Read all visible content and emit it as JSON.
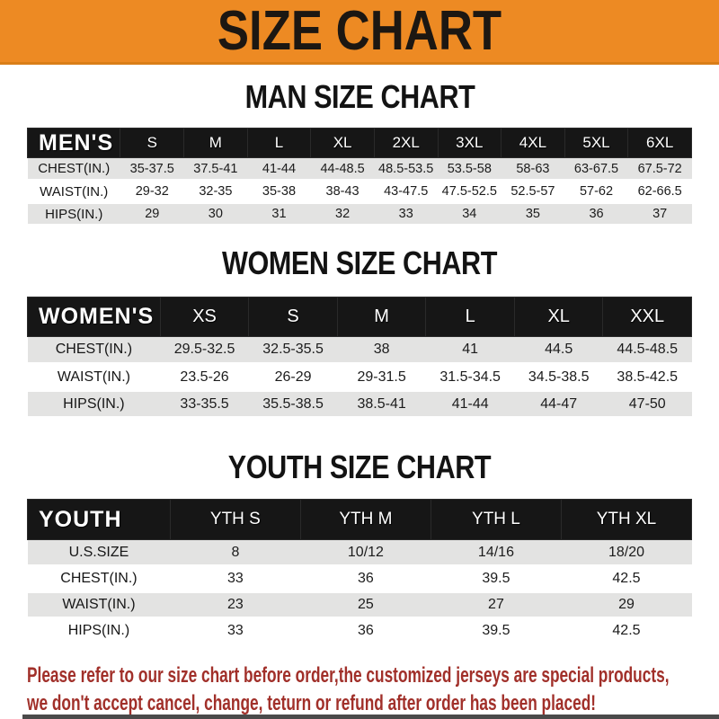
{
  "banner": {
    "title": "SIZE CHART"
  },
  "sections": [
    {
      "heading": "MAN SIZE CHART",
      "table": {
        "header_label": "MEN'S",
        "columns": [
          "S",
          "M",
          "L",
          "XL",
          "2XL",
          "3XL",
          "4XL",
          "5XL",
          "6XL"
        ],
        "rows": [
          {
            "label": "CHEST(IN.)",
            "values": [
              "35-37.5",
              "37.5-41",
              "41-44",
              "44-48.5",
              "48.5-53.5",
              "53.5-58",
              "58-63",
              "63-67.5",
              "67.5-72"
            ]
          },
          {
            "label": "WAIST(IN.)",
            "values": [
              "29-32",
              "32-35",
              "35-38",
              "38-43",
              "43-47.5",
              "47.5-52.5",
              "52.5-57",
              "57-62",
              "62-66.5"
            ]
          },
          {
            "label": "HIPS(IN.)",
            "values": [
              "29",
              "30",
              "31",
              "32",
              "33",
              "34",
              "35",
              "36",
              "37"
            ]
          }
        ]
      }
    },
    {
      "heading": "WOMEN SIZE CHART",
      "table": {
        "header_label": "WOMEN'S",
        "columns": [
          "XS",
          "S",
          "M",
          "L",
          "XL",
          "XXL"
        ],
        "rows": [
          {
            "label": "CHEST(IN.)",
            "values": [
              "29.5-32.5",
              "32.5-35.5",
              "38",
              "41",
              "44.5",
              "44.5-48.5"
            ]
          },
          {
            "label": "WAIST(IN.)",
            "values": [
              "23.5-26",
              "26-29",
              "29-31.5",
              "31.5-34.5",
              "34.5-38.5",
              "38.5-42.5"
            ]
          },
          {
            "label": "HIPS(IN.)",
            "values": [
              "33-35.5",
              "35.5-38.5",
              "38.5-41",
              "41-44",
              "44-47",
              "47-50"
            ]
          }
        ]
      }
    },
    {
      "heading": "YOUTH SIZE CHART",
      "table": {
        "header_label": "YOUTH",
        "columns": [
          "YTH S",
          "YTH M",
          "YTH L",
          "YTH XL"
        ],
        "rows": [
          {
            "label": "U.S.SIZE",
            "values": [
              "8",
              "10/12",
              "14/16",
              "18/20"
            ]
          },
          {
            "label": "CHEST(IN.)",
            "values": [
              "33",
              "36",
              "39.5",
              "42.5"
            ]
          },
          {
            "label": "WAIST(IN.)",
            "values": [
              "23",
              "25",
              "27",
              "29"
            ]
          },
          {
            "label": "HIPS(IN.)",
            "values": [
              "33",
              "36",
              "39.5",
              "42.5"
            ]
          }
        ]
      }
    }
  ],
  "footer": {
    "line1": "Please refer to our size chart before order,the customized jerseys are special products,",
    "line2": "we don't accept cancel, change, teturn or refund after order has been placed!"
  },
  "colors": {
    "banner_orange": "#ED8A23",
    "table_header_black": "#161616",
    "row_gray": "#E3E3E2",
    "footer_red": "#A1302A"
  }
}
